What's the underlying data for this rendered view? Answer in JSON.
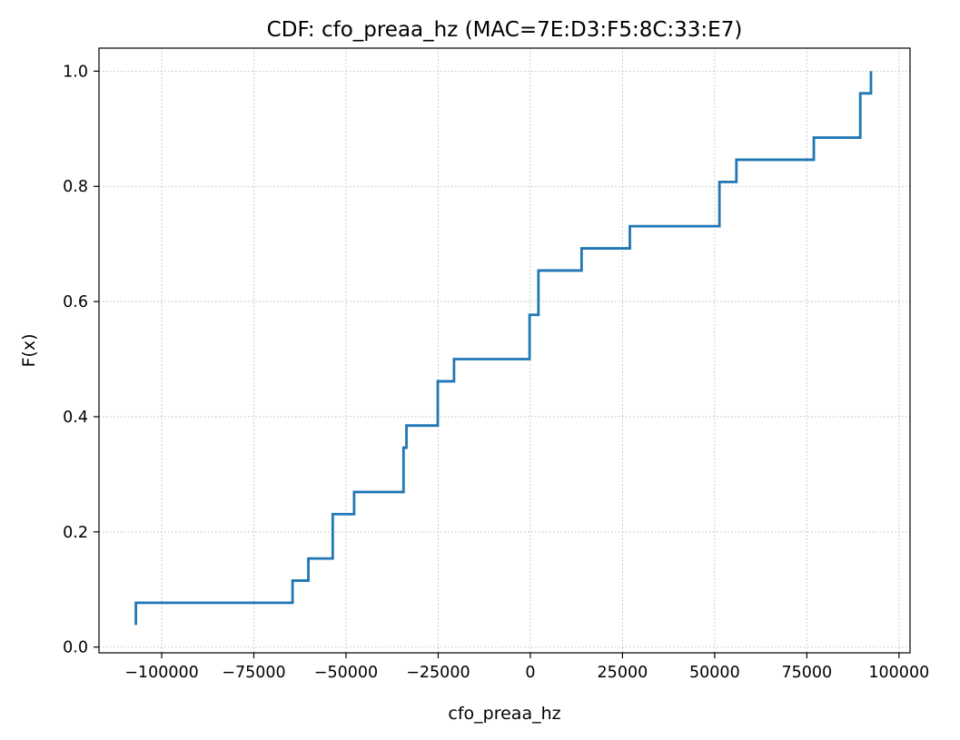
{
  "chart_data": {
    "type": "line",
    "step": true,
    "title": "CDF: cfo_preaa_hz (MAC=7E:D3:F5:8C:33:E7)",
    "xlabel": "cfo_preaa_hz",
    "ylabel": "F(x)",
    "xlim": [
      -117000,
      103000
    ],
    "ylim": [
      -0.01,
      1.04
    ],
    "grid": true,
    "xticks": [
      -100000,
      -75000,
      -50000,
      -25000,
      0,
      25000,
      50000,
      75000,
      100000
    ],
    "xtick_labels": [
      "−100000",
      "−75000",
      "−50000",
      "−25000",
      "0",
      "25000",
      "50000",
      "75000",
      "100000"
    ],
    "yticks": [
      0.0,
      0.2,
      0.4,
      0.6,
      0.8,
      1.0
    ],
    "ytick_labels": [
      "0.0",
      "0.2",
      "0.4",
      "0.6",
      "0.8",
      "1.0"
    ],
    "series": [
      {
        "color": "#1f77b4",
        "x": [
          -107000,
          -107000,
          -64500,
          -60200,
          -53600,
          -47800,
          -34400,
          -33600,
          -25100,
          -20700,
          -200,
          2200,
          13900,
          27000,
          51300,
          55900,
          76900,
          89500,
          92400
        ],
        "y": [
          0.0385,
          0.0769,
          0.1154,
          0.1538,
          0.2308,
          0.2692,
          0.3462,
          0.3846,
          0.4615,
          0.5,
          0.5769,
          0.6538,
          0.6923,
          0.7308,
          0.8077,
          0.8462,
          0.8846,
          0.9615,
          1.0
        ]
      }
    ]
  }
}
